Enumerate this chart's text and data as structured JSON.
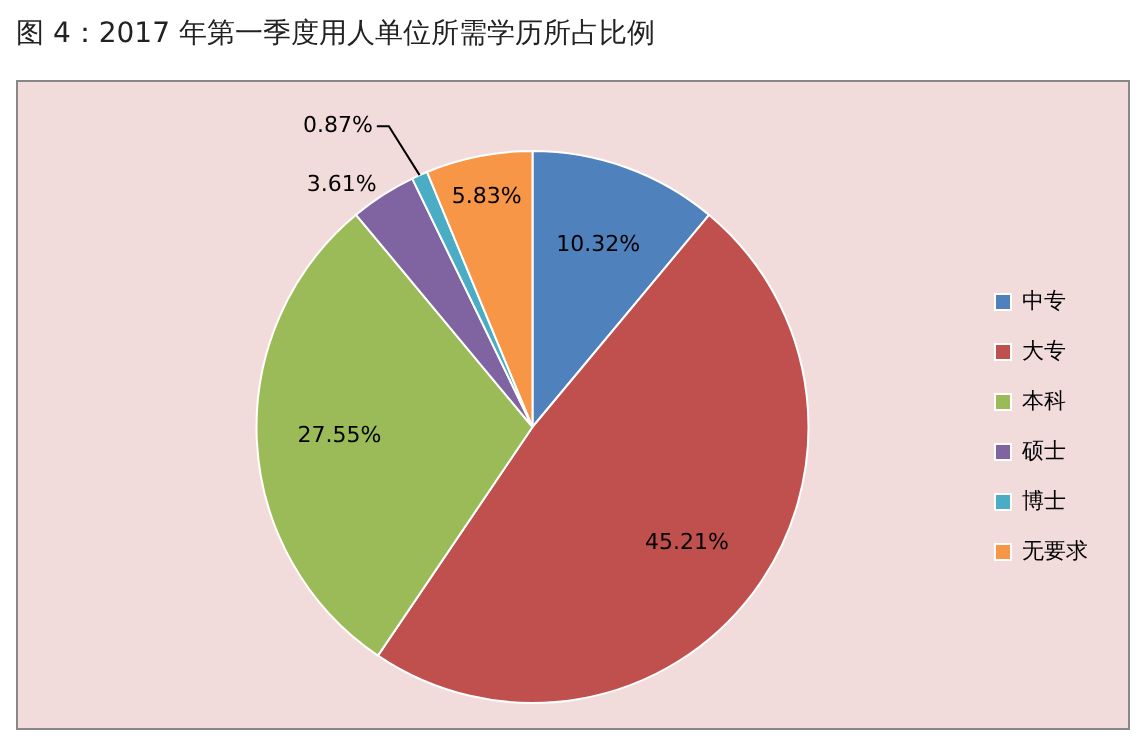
{
  "chart_data": {
    "type": "pie",
    "title": "图 4：2017 年第一季度用人单位所需学历所占比例",
    "categories": [
      "中专",
      "大专",
      "本科",
      "硕士",
      "博士",
      "无要求"
    ],
    "values": [
      10.32,
      45.21,
      27.55,
      3.61,
      0.87,
      5.83
    ],
    "colors": [
      "#4f81bd",
      "#c0504d",
      "#9bbb59",
      "#8064a2",
      "#4bacc6",
      "#f79646"
    ],
    "value_labels": [
      "10.32%",
      "45.21%",
      "27.55%",
      "3.61%",
      "0.87%",
      "5.83%"
    ],
    "legend": "right"
  }
}
